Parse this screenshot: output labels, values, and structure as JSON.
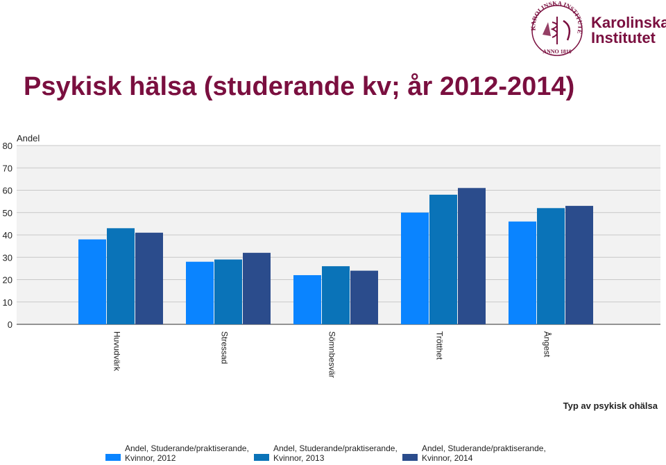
{
  "slide": {
    "title": "Psykisk hälsa (studerande kv; år 2012-2014)",
    "logo_line1": "Karolinska",
    "logo_line2": "Institutet",
    "seal_text": "KAROLINSKA INSTITUTET ANNO 1810",
    "brand_color": "#7a0f3f"
  },
  "chart_data": {
    "type": "bar",
    "ylabel": "Andel",
    "xlabel": "Typ av psykisk ohälsa",
    "ylim": [
      0,
      80
    ],
    "yticks": [
      0,
      10,
      20,
      30,
      40,
      50,
      60,
      70,
      80
    ],
    "grid": true,
    "legend_placement": "bottom",
    "categories": [
      "Huvudvärk",
      "Stressad",
      "Sömnbesvär",
      "Trötthet",
      "Ångest"
    ],
    "series": [
      {
        "name": "Andel, Studerande/praktiserande, Kvinnor, 2012",
        "color": "#0a84ff",
        "values": [
          38,
          28,
          22,
          50,
          46
        ]
      },
      {
        "name": "Andel, Studerande/praktiserande, Kvinnor, 2013",
        "color": "#0a73b8",
        "values": [
          43,
          29,
          26,
          58,
          52
        ]
      },
      {
        "name": "Andel, Studerande/praktiserande, Kvinnor, 2014",
        "color": "#2b4c8c",
        "values": [
          41,
          32,
          24,
          61,
          53
        ]
      }
    ]
  }
}
